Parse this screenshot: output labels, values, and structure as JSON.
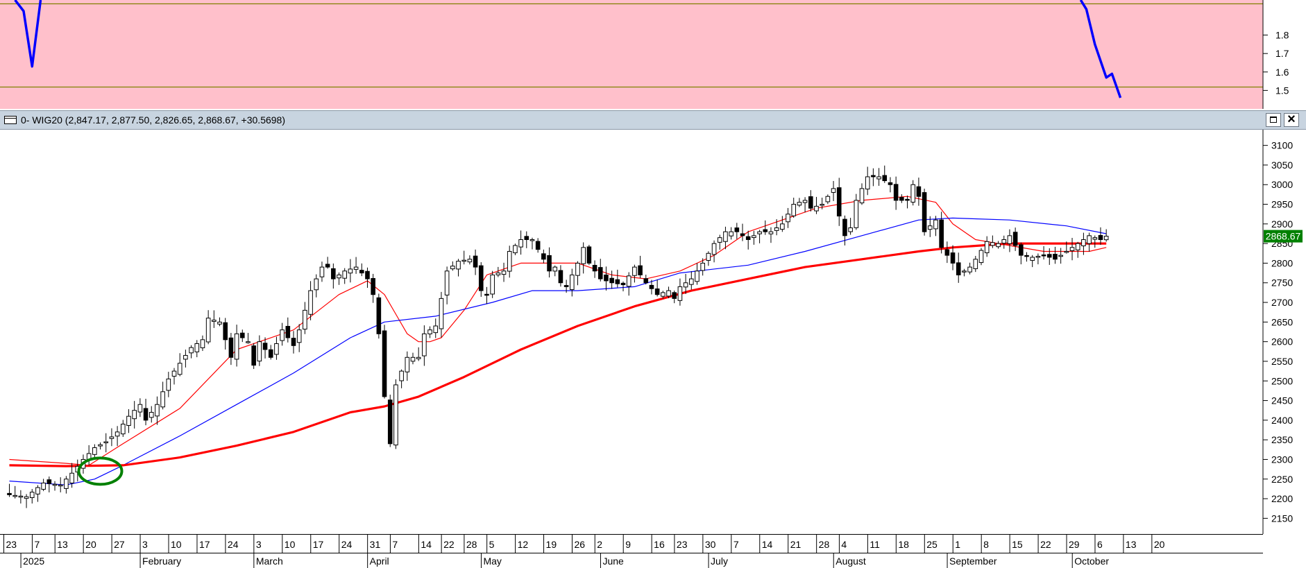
{
  "window": {
    "title": "0- WIG20 (2,847.17, 2,877.50, 2,826.65, 2,868.67, +30.5698)",
    "maximize_icon": "maximize-icon",
    "close_icon": "close-icon",
    "close_glyph": "×"
  },
  "colors": {
    "indicator_bg": "#ffc0cb",
    "indicator_line": "#0000ff",
    "guide_lines": "#808000",
    "ma_short": "#ff0000",
    "ma_medium": "#0000ff",
    "ma_long": "#ff0000",
    "candle": "#000000",
    "last_price_bg": "#008000",
    "last_price_text": "#ffffff",
    "highlight_circle": "#008000"
  },
  "chart_data": [
    {
      "type": "line",
      "name": "indicator",
      "y_ticks": [
        "1.8",
        "1.7",
        "1.6",
        "1.5"
      ],
      "ylim": [
        1.4,
        1.99
      ],
      "guide_levels": [
        1.97,
        1.52
      ],
      "series": [
        {
          "values": [
            [
              1,
              1.99
            ],
            [
              2.5,
              1.93
            ],
            [
              4,
              1.63
            ],
            [
              5.5,
              1.99
            ]
          ]
        },
        {
          "values": [
            [
              188.5,
              1.99
            ],
            [
              189.5,
              1.94
            ],
            [
              191,
              1.75
            ],
            [
              193,
              1.57
            ],
            [
              194,
              1.59
            ],
            [
              195.5,
              1.46
            ]
          ]
        }
      ]
    },
    {
      "type": "candlestick",
      "title": "0- WIG20 (2,847.17, 2,877.50, 2,826.65, 2,868.67, +30.5698)",
      "ylim": [
        2110,
        3140
      ],
      "y_ticks": [
        2150,
        2200,
        2250,
        2300,
        2350,
        2400,
        2450,
        2500,
        2550,
        2600,
        2650,
        2700,
        2750,
        2800,
        2850,
        2900,
        2950,
        3000,
        3050,
        3100
      ],
      "last_price": "2868.67",
      "x_ticks": [
        {
          "i": 0,
          "label": "23"
        },
        {
          "i": 5,
          "label": "7"
        },
        {
          "i": 9,
          "label": "13"
        },
        {
          "i": 14,
          "label": "20"
        },
        {
          "i": 19,
          "label": "27"
        },
        {
          "i": 24,
          "label": "3"
        },
        {
          "i": 29,
          "label": "10"
        },
        {
          "i": 34,
          "label": "17"
        },
        {
          "i": 39,
          "label": "24"
        },
        {
          "i": 44,
          "label": "3"
        },
        {
          "i": 49,
          "label": "10"
        },
        {
          "i": 54,
          "label": "17"
        },
        {
          "i": 59,
          "label": "24"
        },
        {
          "i": 64,
          "label": "31"
        },
        {
          "i": 68,
          "label": "7"
        },
        {
          "i": 73,
          "label": "14"
        },
        {
          "i": 77,
          "label": "22"
        },
        {
          "i": 81,
          "label": "28"
        },
        {
          "i": 85,
          "label": "5"
        },
        {
          "i": 90,
          "label": "12"
        },
        {
          "i": 95,
          "label": "19"
        },
        {
          "i": 100,
          "label": "26"
        },
        {
          "i": 104,
          "label": "2"
        },
        {
          "i": 109,
          "label": "9"
        },
        {
          "i": 114,
          "label": "16"
        },
        {
          "i": 118,
          "label": "23"
        },
        {
          "i": 123,
          "label": "30"
        },
        {
          "i": 128,
          "label": "7"
        },
        {
          "i": 133,
          "label": "14"
        },
        {
          "i": 138,
          "label": "21"
        },
        {
          "i": 143,
          "label": "28"
        },
        {
          "i": 147,
          "label": "4"
        },
        {
          "i": 152,
          "label": "11"
        },
        {
          "i": 157,
          "label": "18"
        },
        {
          "i": 162,
          "label": "25"
        },
        {
          "i": 167,
          "label": "1"
        },
        {
          "i": 172,
          "label": "8"
        },
        {
          "i": 177,
          "label": "15"
        },
        {
          "i": 182,
          "label": "22"
        },
        {
          "i": 187,
          "label": "29"
        },
        {
          "i": 192,
          "label": "6"
        },
        {
          "i": 197,
          "label": "13"
        },
        {
          "i": 202,
          "label": "20"
        }
      ],
      "x_months": [
        {
          "i": 3,
          "label": "2025"
        },
        {
          "i": 24,
          "label": "February"
        },
        {
          "i": 44,
          "label": "March"
        },
        {
          "i": 64,
          "label": "April"
        },
        {
          "i": 84,
          "label": "May"
        },
        {
          "i": 105,
          "label": "June"
        },
        {
          "i": 124,
          "label": "July"
        },
        {
          "i": 146,
          "label": "August"
        },
        {
          "i": 166,
          "label": "September"
        },
        {
          "i": 188,
          "label": "October"
        }
      ],
      "close_keypoints": [
        [
          0,
          2210
        ],
        [
          3,
          2205
        ],
        [
          6,
          2240
        ],
        [
          9,
          2235
        ],
        [
          11,
          2265
        ],
        [
          13,
          2300
        ],
        [
          15,
          2330
        ],
        [
          17,
          2345
        ],
        [
          19,
          2370
        ],
        [
          21,
          2410
        ],
        [
          23,
          2440
        ],
        [
          24,
          2400
        ],
        [
          26,
          2440
        ],
        [
          28,
          2505
        ],
        [
          30,
          2545
        ],
        [
          32,
          2585
        ],
        [
          34,
          2605
        ],
        [
          35,
          2660
        ],
        [
          37,
          2650
        ],
        [
          39,
          2560
        ],
        [
          40,
          2620
        ],
        [
          42,
          2600
        ],
        [
          43,
          2540
        ],
        [
          44,
          2600
        ],
        [
          46,
          2560
        ],
        [
          48,
          2630
        ],
        [
          50,
          2590
        ],
        [
          51,
          2630
        ],
        [
          53,
          2730
        ],
        [
          55,
          2790
        ],
        [
          56,
          2790
        ],
        [
          57,
          2760
        ],
        [
          59,
          2780
        ],
        [
          61,
          2790
        ],
        [
          63,
          2760
        ],
        [
          64,
          2720
        ],
        [
          65,
          2620
        ],
        [
          66,
          2460
        ],
        [
          67,
          2340
        ],
        [
          68,
          2490
        ],
        [
          70,
          2560
        ],
        [
          72,
          2560
        ],
        [
          73,
          2620
        ],
        [
          75,
          2640
        ],
        [
          77,
          2780
        ],
        [
          79,
          2805
        ],
        [
          81,
          2810
        ],
        [
          82,
          2790
        ],
        [
          83,
          2730
        ],
        [
          84,
          2720
        ],
        [
          85,
          2770
        ],
        [
          87,
          2780
        ],
        [
          88,
          2830
        ],
        [
          90,
          2860
        ],
        [
          92,
          2860
        ],
        [
          94,
          2810
        ],
        [
          95,
          2780
        ],
        [
          96,
          2790
        ],
        [
          97,
          2750
        ],
        [
          98,
          2740
        ],
        [
          100,
          2800
        ],
        [
          101,
          2840
        ],
        [
          102,
          2800
        ],
        [
          104,
          2760
        ],
        [
          106,
          2750
        ],
        [
          108,
          2745
        ],
        [
          110,
          2790
        ],
        [
          112,
          2750
        ],
        [
          114,
          2720
        ],
        [
          116,
          2730
        ],
        [
          117,
          2710
        ],
        [
          118,
          2740
        ],
        [
          120,
          2760
        ],
        [
          122,
          2800
        ],
        [
          124,
          2850
        ],
        [
          126,
          2880
        ],
        [
          128,
          2880
        ],
        [
          130,
          2860
        ],
        [
          132,
          2880
        ],
        [
          134,
          2880
        ],
        [
          136,
          2900
        ],
        [
          138,
          2950
        ],
        [
          140,
          2960
        ],
        [
          141,
          2940
        ],
        [
          143,
          2950
        ],
        [
          145,
          2990
        ],
        [
          146,
          2920
        ],
        [
          147,
          2870
        ],
        [
          148,
          2890
        ],
        [
          149,
          2960
        ],
        [
          151,
          3020
        ],
        [
          153,
          3020
        ],
        [
          155,
          3000
        ],
        [
          156,
          2960
        ],
        [
          158,
          2960
        ],
        [
          159,
          3000
        ],
        [
          160,
          2970
        ],
        [
          161,
          2880
        ],
        [
          163,
          2910
        ],
        [
          164,
          2840
        ],
        [
          166,
          2800
        ],
        [
          167,
          2770
        ],
        [
          169,
          2790
        ],
        [
          170,
          2810
        ],
        [
          172,
          2855
        ],
        [
          174,
          2850
        ],
        [
          176,
          2870
        ],
        [
          178,
          2820
        ],
        [
          180,
          2815
        ],
        [
          182,
          2820
        ],
        [
          184,
          2810
        ],
        [
          186,
          2830
        ],
        [
          188,
          2850
        ],
        [
          190,
          2870
        ],
        [
          192,
          2860
        ],
        [
          193,
          2868.67
        ]
      ],
      "series": [
        {
          "values": [
            [
              0,
              2300
            ],
            [
              10,
              2290
            ],
            [
              14,
              2285
            ],
            [
              20,
              2340
            ],
            [
              30,
              2430
            ],
            [
              40,
              2580
            ],
            [
              50,
              2630
            ],
            [
              58,
              2720
            ],
            [
              63,
              2755
            ],
            [
              66,
              2720
            ],
            [
              68,
              2670
            ],
            [
              70,
              2620
            ],
            [
              72,
              2600
            ],
            [
              74,
              2600
            ],
            [
              76,
              2610
            ],
            [
              80,
              2680
            ],
            [
              84,
              2770
            ],
            [
              90,
              2800
            ],
            [
              100,
              2800
            ],
            [
              106,
              2770
            ],
            [
              112,
              2760
            ],
            [
              118,
              2780
            ],
            [
              124,
              2820
            ],
            [
              130,
              2880
            ],
            [
              136,
              2910
            ],
            [
              142,
              2940
            ],
            [
              150,
              2960
            ],
            [
              158,
              2970
            ],
            [
              163,
              2955
            ],
            [
              166,
              2900
            ],
            [
              170,
              2860
            ],
            [
              176,
              2845
            ],
            [
              182,
              2830
            ],
            [
              186,
              2830
            ],
            [
              190,
              2830
            ],
            [
              193,
              2840
            ]
          ]
        },
        {
          "values": [
            [
              0,
              2245
            ],
            [
              10,
              2235
            ],
            [
              15,
              2250
            ],
            [
              20,
              2285
            ],
            [
              30,
              2360
            ],
            [
              40,
              2440
            ],
            [
              50,
              2520
            ],
            [
              60,
              2610
            ],
            [
              66,
              2650
            ],
            [
              75,
              2665
            ],
            [
              85,
              2700
            ],
            [
              92,
              2730
            ],
            [
              100,
              2730
            ],
            [
              110,
              2740
            ],
            [
              118,
              2775
            ],
            [
              130,
              2795
            ],
            [
              140,
              2830
            ],
            [
              150,
              2870
            ],
            [
              160,
              2910
            ],
            [
              166,
              2915
            ],
            [
              176,
              2910
            ],
            [
              186,
              2895
            ],
            [
              193,
              2875
            ]
          ]
        },
        {
          "values": [
            [
              0,
              2285
            ],
            [
              10,
              2283
            ],
            [
              20,
              2285
            ],
            [
              30,
              2305
            ],
            [
              40,
              2335
            ],
            [
              50,
              2370
            ],
            [
              60,
              2420
            ],
            [
              66,
              2435
            ],
            [
              72,
              2460
            ],
            [
              80,
              2510
            ],
            [
              90,
              2580
            ],
            [
              100,
              2640
            ],
            [
              110,
              2690
            ],
            [
              120,
              2730
            ],
            [
              130,
              2760
            ],
            [
              140,
              2790
            ],
            [
              150,
              2810
            ],
            [
              160,
              2830
            ],
            [
              166,
              2840
            ],
            [
              176,
              2850
            ],
            [
              186,
              2850
            ],
            [
              193,
              2850
            ]
          ]
        }
      ]
    }
  ]
}
